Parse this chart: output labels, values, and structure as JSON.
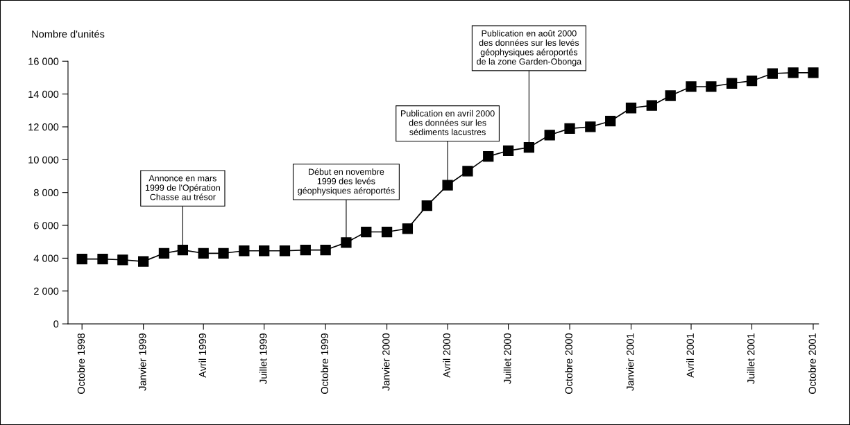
{
  "chart_data": {
    "type": "line",
    "ylabel": "Nombre d'unités",
    "x": [
      "1998-10",
      "1998-11",
      "1998-12",
      "1999-01",
      "1999-02",
      "1999-03",
      "1999-04",
      "1999-05",
      "1999-06",
      "1999-07",
      "1999-08",
      "1999-09",
      "1999-10",
      "1999-11",
      "1999-12",
      "2000-01",
      "2000-02",
      "2000-03",
      "2000-04",
      "2000-05",
      "2000-06",
      "2000-07",
      "2000-08",
      "2000-09",
      "2000-10",
      "2000-11",
      "2000-12",
      "2001-01",
      "2001-02",
      "2001-03",
      "2001-04",
      "2001-05",
      "2001-06",
      "2001-07",
      "2001-08",
      "2001-09",
      "2001-10"
    ],
    "series": [
      {
        "color": "#000000",
        "values": [
          3950,
          3950,
          3900,
          3800,
          4300,
          4500,
          4300,
          4300,
          4450,
          4450,
          4450,
          4500,
          4500,
          4950,
          5600,
          5600,
          5800,
          7200,
          8450,
          9300,
          10200,
          10550,
          10750,
          11500,
          11900,
          12000,
          12350,
          13150,
          13300,
          13900,
          14450,
          14450,
          14650,
          14800,
          15250,
          15300,
          15300
        ]
      }
    ],
    "marker": "square",
    "line_style": "solid",
    "grid": false,
    "xlim": [
      "1998-09-10",
      "2001-10-09"
    ],
    "xticks": [
      {
        "value": "1998-10",
        "label": "Octobre 1998"
      },
      {
        "value": "1999-01",
        "label": "Janvier 1999"
      },
      {
        "value": "1999-04",
        "label": "Avril 1999"
      },
      {
        "value": "1999-07",
        "label": "Juillet 1999"
      },
      {
        "value": "1999-10",
        "label": "Octobre 1999"
      },
      {
        "value": "2000-01",
        "label": "Janvier 2000"
      },
      {
        "value": "2000-04",
        "label": "Avril 2000"
      },
      {
        "value": "2000-07",
        "label": "Juillet 2000"
      },
      {
        "value": "2000-10",
        "label": "Octobre 2000"
      },
      {
        "value": "2001-01",
        "label": "Janvier 2001"
      },
      {
        "value": "2001-04",
        "label": "Avril 2001"
      },
      {
        "value": "2001-07",
        "label": "Juillet 2001"
      },
      {
        "value": "2001-10",
        "label": "Octobre 2001"
      }
    ],
    "ylim": [
      0,
      16000
    ],
    "yticks": [
      0,
      {
        "value": 2000,
        "label": "2 000"
      },
      {
        "value": 4000,
        "label": "4 000"
      },
      {
        "value": 6000,
        "label": "6 000"
      },
      {
        "value": 8000,
        "label": "8 000"
      },
      {
        "value": 10000,
        "label": "10 000"
      },
      {
        "value": 12000,
        "label": "12 000"
      },
      {
        "value": 14000,
        "label": "14 000"
      },
      {
        "value": 16000,
        "label": "16 000"
      }
    ],
    "annotations": [
      {
        "text": "Annonce en mars\n1999 de l'Opération\nChasse au trésor",
        "x": "1999-03",
        "y": 4500
      },
      {
        "text": "Début en novembre\n1999 des levés\ngéophysiques aéroportés",
        "x": "1999-11",
        "y": 4950
      },
      {
        "text": "Publication en avril 2000\ndes données sur les\nsédiments lacustres",
        "x": "2000-04",
        "y": 8450
      },
      {
        "text": "Publication en août 2000\ndes données sur les levés\ngéophysiques aéroportés\nde la zone Garden-Obonga",
        "x": "2000-08",
        "y": 10750
      }
    ]
  }
}
